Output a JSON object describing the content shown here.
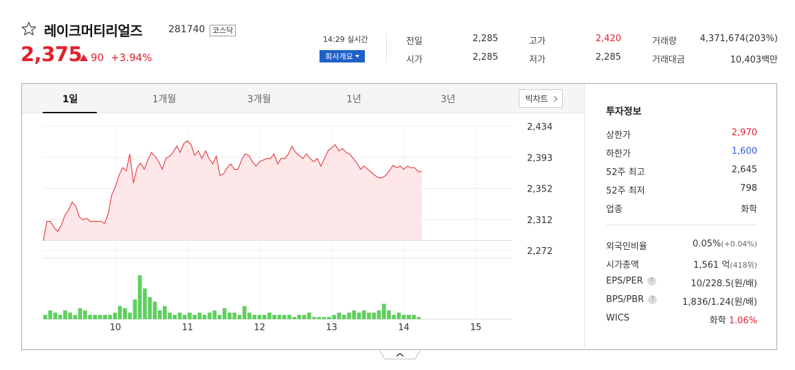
{
  "stock": {
    "name": "레이크머티리얼즈",
    "code": "281740",
    "market": "코스닥",
    "price": "2,375",
    "change": "90",
    "change_pct": "+3.94%"
  },
  "realtime": {
    "time": "14:29 실시간",
    "company_button": "회사개요"
  },
  "quote": [
    {
      "label": "전일",
      "value": "2,285",
      "tone": "normal"
    },
    {
      "label": "고가",
      "value": "2,420",
      "tone": "red"
    },
    {
      "label": "거래량",
      "value": "4,371,674(203%)",
      "tone": "normal"
    },
    {
      "label": "시가",
      "value": "2,285",
      "tone": "normal"
    },
    {
      "label": "저가",
      "value": "2,285",
      "tone": "normal"
    },
    {
      "label": "거래대금",
      "value": "10,403백만",
      "tone": "normal"
    }
  ],
  "tabs": [
    "1일",
    "1개월",
    "3개월",
    "1년",
    "3년"
  ],
  "big_chart_label": "빅차트",
  "chart_data": {
    "type": "area",
    "y_ticks": [
      "2,434",
      "2,393",
      "2,352",
      "2,312",
      "2,272"
    ],
    "ylim": [
      2272,
      2434
    ],
    "prev_close": 2285,
    "x_ticks": [
      "10",
      "11",
      "12",
      "13",
      "14",
      "15"
    ],
    "x_range": [
      9.0,
      15.5
    ],
    "price_series": [
      [
        9.0,
        2285
      ],
      [
        9.05,
        2310
      ],
      [
        9.1,
        2310
      ],
      [
        9.15,
        2302
      ],
      [
        9.2,
        2297
      ],
      [
        9.25,
        2305
      ],
      [
        9.3,
        2318
      ],
      [
        9.35,
        2325
      ],
      [
        9.4,
        2335
      ],
      [
        9.45,
        2330
      ],
      [
        9.5,
        2316
      ],
      [
        9.55,
        2312
      ],
      [
        9.6,
        2314
      ],
      [
        9.65,
        2310
      ],
      [
        9.7,
        2310
      ],
      [
        9.75,
        2310
      ],
      [
        9.8,
        2310
      ],
      [
        9.85,
        2307
      ],
      [
        9.9,
        2320
      ],
      [
        9.95,
        2345
      ],
      [
        10.0,
        2355
      ],
      [
        10.05,
        2370
      ],
      [
        10.1,
        2380
      ],
      [
        10.15,
        2376
      ],
      [
        10.2,
        2398
      ],
      [
        10.25,
        2360
      ],
      [
        10.3,
        2380
      ],
      [
        10.35,
        2386
      ],
      [
        10.4,
        2378
      ],
      [
        10.45,
        2390
      ],
      [
        10.5,
        2400
      ],
      [
        10.55,
        2395
      ],
      [
        10.6,
        2388
      ],
      [
        10.65,
        2378
      ],
      [
        10.7,
        2392
      ],
      [
        10.75,
        2395
      ],
      [
        10.8,
        2400
      ],
      [
        10.85,
        2408
      ],
      [
        10.9,
        2400
      ],
      [
        10.95,
        2412
      ],
      [
        11.0,
        2415
      ],
      [
        11.05,
        2410
      ],
      [
        11.1,
        2396
      ],
      [
        11.15,
        2402
      ],
      [
        11.2,
        2392
      ],
      [
        11.25,
        2402
      ],
      [
        11.3,
        2392
      ],
      [
        11.35,
        2385
      ],
      [
        11.4,
        2395
      ],
      [
        11.45,
        2370
      ],
      [
        11.5,
        2372
      ],
      [
        11.55,
        2380
      ],
      [
        11.6,
        2385
      ],
      [
        11.65,
        2378
      ],
      [
        11.7,
        2378
      ],
      [
        11.75,
        2390
      ],
      [
        11.8,
        2398
      ],
      [
        11.85,
        2396
      ],
      [
        11.9,
        2388
      ],
      [
        11.95,
        2382
      ],
      [
        12.0,
        2388
      ],
      [
        12.05,
        2390
      ],
      [
        12.1,
        2392
      ],
      [
        12.15,
        2392
      ],
      [
        12.2,
        2398
      ],
      [
        12.25,
        2385
      ],
      [
        12.3,
        2392
      ],
      [
        12.35,
        2392
      ],
      [
        12.4,
        2398
      ],
      [
        12.45,
        2408
      ],
      [
        12.5,
        2400
      ],
      [
        12.55,
        2396
      ],
      [
        12.6,
        2392
      ],
      [
        12.65,
        2398
      ],
      [
        12.7,
        2392
      ],
      [
        12.75,
        2388
      ],
      [
        12.8,
        2392
      ],
      [
        12.85,
        2382
      ],
      [
        12.9,
        2392
      ],
      [
        12.95,
        2402
      ],
      [
        13.0,
        2406
      ],
      [
        13.05,
        2410
      ],
      [
        13.1,
        2402
      ],
      [
        13.15,
        2405
      ],
      [
        13.2,
        2400
      ],
      [
        13.25,
        2398
      ],
      [
        13.3,
        2392
      ],
      [
        13.35,
        2386
      ],
      [
        13.4,
        2378
      ],
      [
        13.45,
        2382
      ],
      [
        13.5,
        2378
      ],
      [
        13.55,
        2374
      ],
      [
        13.6,
        2370
      ],
      [
        13.65,
        2367
      ],
      [
        13.7,
        2367
      ],
      [
        13.75,
        2370
      ],
      [
        13.8,
        2376
      ],
      [
        13.85,
        2383
      ],
      [
        13.9,
        2380
      ],
      [
        13.95,
        2382
      ],
      [
        14.0,
        2378
      ],
      [
        14.05,
        2382
      ],
      [
        14.1,
        2380
      ],
      [
        14.15,
        2380
      ],
      [
        14.2,
        2375
      ],
      [
        14.25,
        2375
      ]
    ],
    "volume_series": [
      2,
      4,
      3,
      2,
      4,
      3,
      2,
      5,
      4,
      2,
      2,
      2,
      2,
      2,
      3,
      6,
      5,
      3,
      9,
      20,
      14,
      10,
      8,
      4,
      6,
      3,
      2,
      3,
      2,
      3,
      2,
      3,
      2,
      3,
      4,
      2,
      5,
      3,
      3,
      2,
      6,
      3,
      2,
      2,
      2,
      3,
      2,
      2,
      2,
      2,
      1,
      2,
      2,
      3,
      1,
      1,
      1,
      1,
      2,
      3,
      2,
      3,
      4,
      3,
      4,
      3,
      3,
      4,
      7,
      4,
      2,
      3,
      2,
      2,
      2,
      1
    ],
    "grid": true
  },
  "invest": {
    "title": "투자정보",
    "rows": [
      {
        "label": "상한가",
        "value": "2,970",
        "tone": "red"
      },
      {
        "label": "하한가",
        "value": "1,600",
        "tone": "blue"
      },
      {
        "label": "52주 최고",
        "value": "2,645",
        "tone": "normal"
      },
      {
        "label": "52주 최저",
        "value": "798",
        "tone": "normal"
      },
      {
        "label": "업종",
        "value": "화학",
        "tone": "normal"
      }
    ],
    "rows2": [
      {
        "label": "외국인비율",
        "value": "0.05%",
        "sub": "(+0.04%)",
        "help": false
      },
      {
        "label": "시가총액",
        "value": "1,561 억",
        "sub": "(418위)",
        "help": false
      },
      {
        "label": "EPS/PER",
        "value": "10/228.5",
        "sub": "(원/배)",
        "help": true
      },
      {
        "label": "BPS/PBR",
        "value": "1,836/1.24",
        "sub": "(원/배)",
        "help": true
      },
      {
        "label": "WICS",
        "value": "화학",
        "sub": "1.06%",
        "help": false
      }
    ]
  }
}
